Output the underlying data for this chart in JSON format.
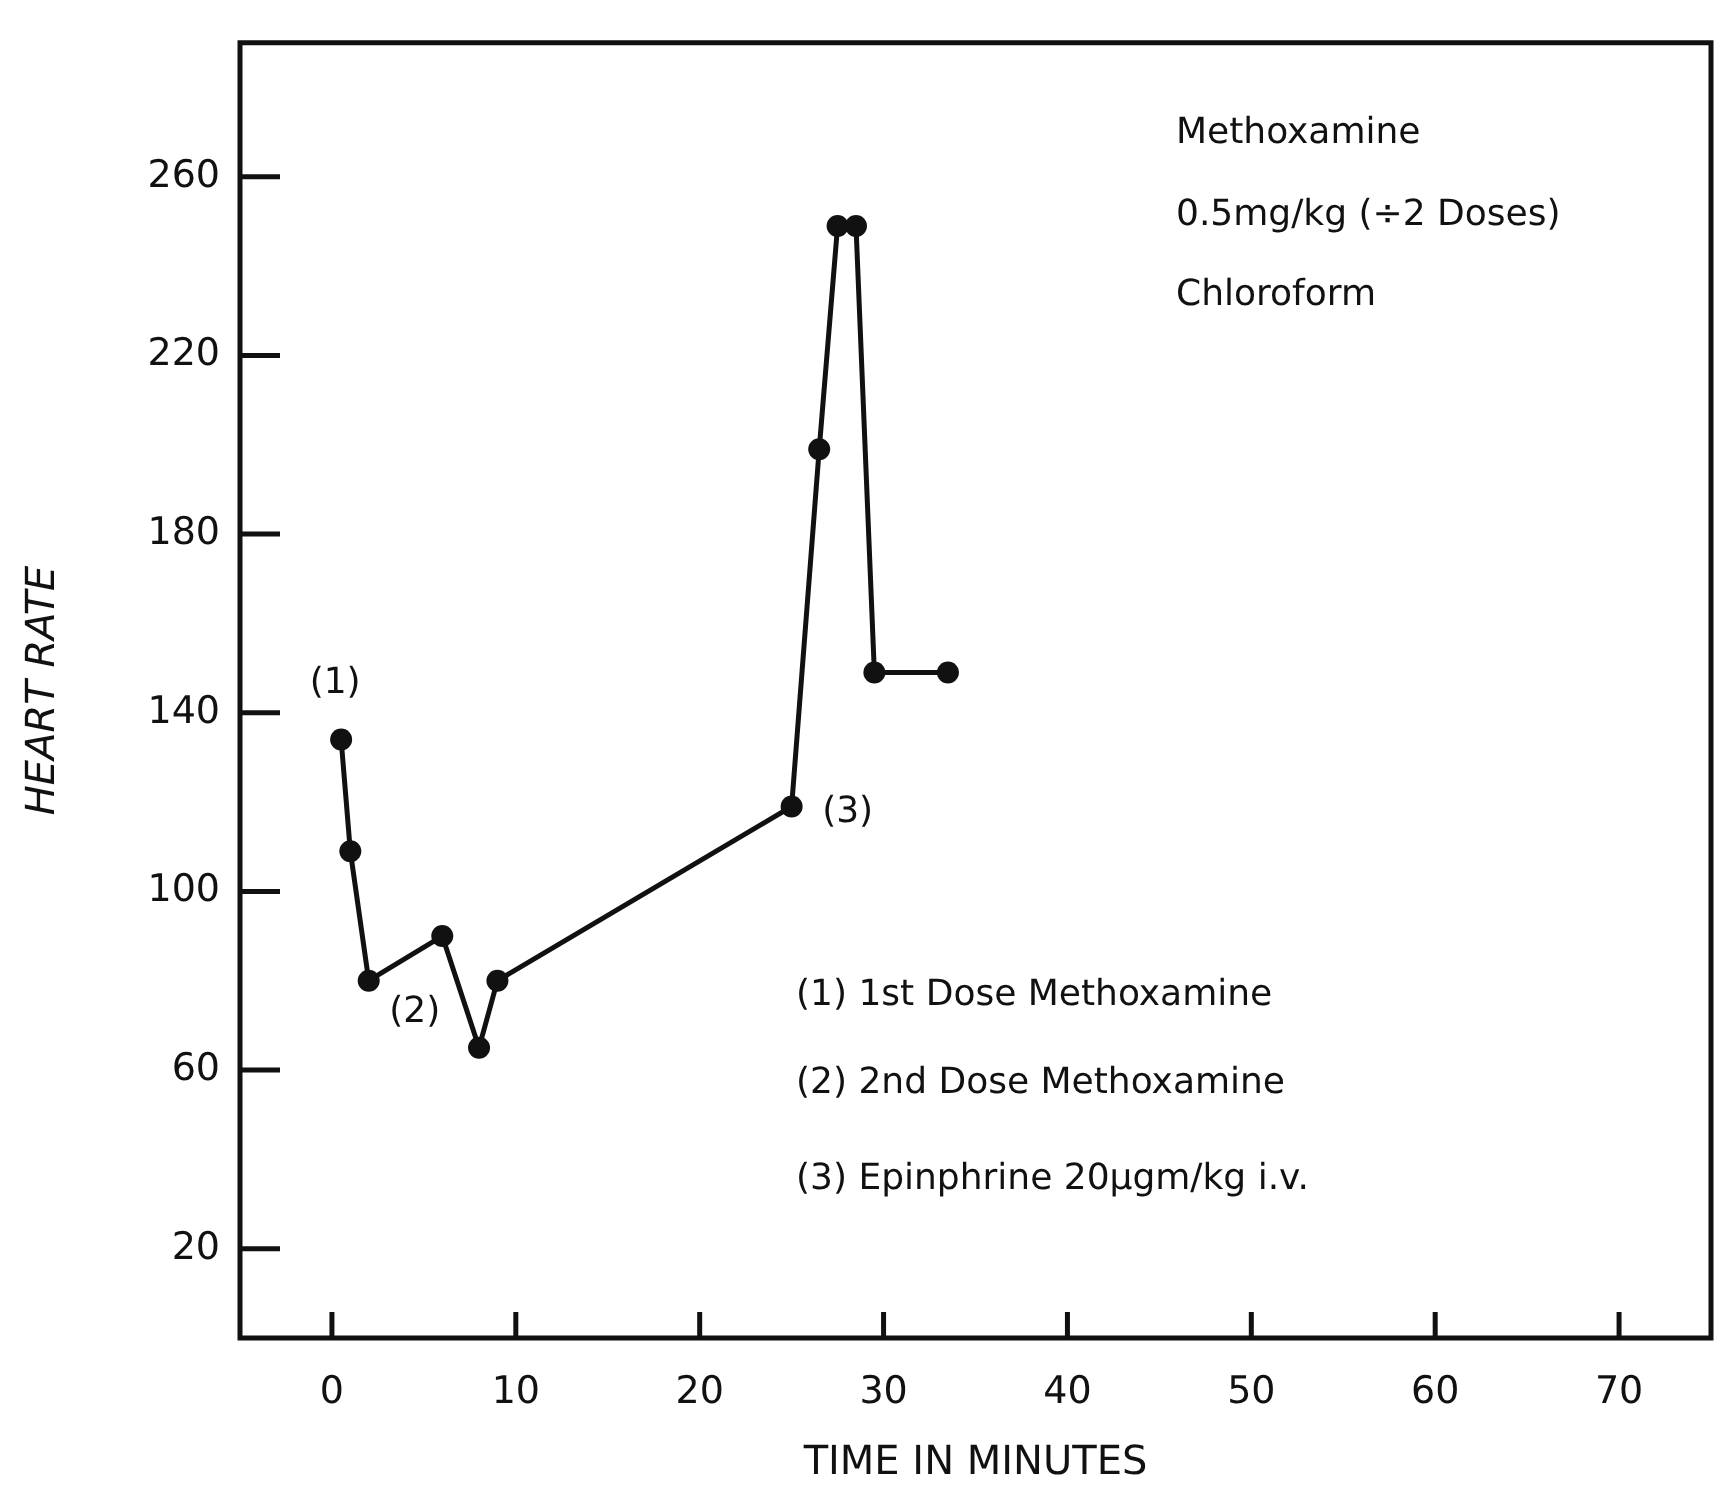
{
  "chart_data": {
    "type": "line",
    "xlabel": "TIME IN MINUTES",
    "ylabel": "HEART RATE",
    "x": [
      0.5,
      1,
      2,
      6,
      8,
      9,
      25,
      26.5,
      27.5,
      28.5,
      29.5,
      33.5
    ],
    "series": [
      {
        "color": "#111111",
        "values": [
          134,
          109,
          80,
          90,
          65,
          80,
          119,
          199,
          249,
          249,
          149,
          149
        ]
      }
    ],
    "xlim": [
      -5,
      75
    ],
    "xticks": [
      0,
      10,
      20,
      30,
      40,
      50,
      60,
      70
    ],
    "ylim": [
      0,
      290
    ],
    "yticks": [
      20,
      60,
      100,
      140,
      180,
      220,
      260
    ],
    "marker": "circle",
    "line_style": "solid",
    "annotations": [
      {
        "text": "(1)",
        "x": 0.5,
        "y": 134
      },
      {
        "text": "(2)",
        "x": 2,
        "y": 80
      },
      {
        "text": "(3)",
        "x": 25,
        "y": 119
      },
      "Methoxamine",
      "0.5mg/kg (÷2 Doses)",
      "Chloroform",
      "(1) 1st Dose Methoxamine",
      "(2) 2nd Dose Methoxamine",
      "(3) Epinphrine 20µgm/kg i.v."
    ]
  }
}
